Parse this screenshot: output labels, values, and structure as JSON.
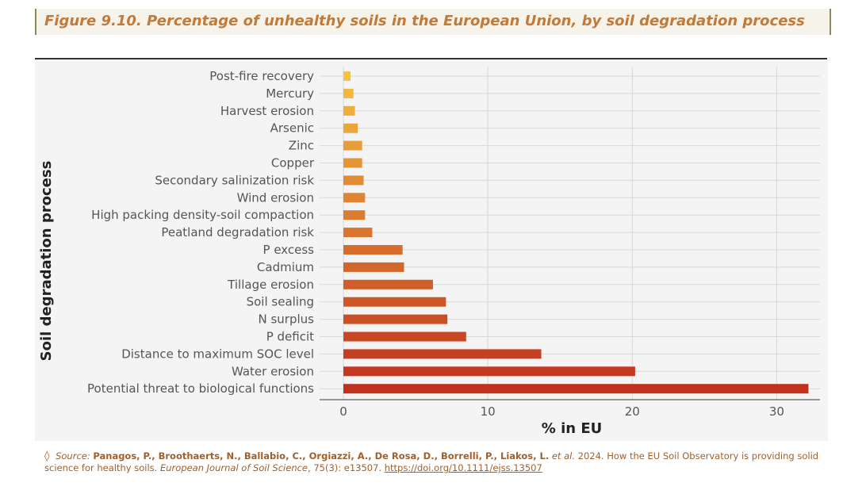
{
  "figure": {
    "title": "Figure 9.10. Percentage of unhealthy soils in the European Union, by soil degradation process"
  },
  "chart_data": {
    "type": "bar",
    "orientation": "horizontal",
    "categories": [
      "Post-fire recovery",
      "Mercury",
      "Harvest erosion",
      "Arsenic",
      "Zinc",
      "Copper",
      "Secondary salinization risk",
      "Wind erosion",
      "High packing density-soil compaction",
      "Peatland degradation risk",
      "P excess",
      "Cadmium",
      "Tillage erosion",
      "Soil sealing",
      "N surplus",
      "P deficit",
      "Distance to maximum SOC level",
      "Water erosion",
      "Potential threat to biological functions"
    ],
    "values": [
      0.5,
      0.7,
      0.8,
      1.0,
      1.3,
      1.3,
      1.4,
      1.5,
      1.5,
      2.0,
      4.1,
      4.2,
      6.2,
      7.1,
      7.2,
      8.5,
      13.7,
      20.2,
      32.2
    ],
    "xlabel": "% in EU",
    "ylabel": "Soil degradation process",
    "xlim": [
      0,
      33
    ],
    "xticks": [
      0,
      10,
      20,
      30
    ],
    "grid": true,
    "colors": {
      "low": "#f5c242",
      "high": "#c0321e"
    }
  },
  "source": {
    "label": "Source:",
    "authors": "Panagos, P., Broothaerts, N., Ballabio, C., Orgiazzi, A., De Rosa, D., Borrelli, P., Liakos, L.",
    "etal": "et al.",
    "text": "2024. How the EU Soil Observatory is providing solid science for healthy soils.",
    "journal": "European Journal of Soil Science",
    "volume": ", 75(3): e13507.",
    "link": "https://doi.org/10.1111/ejss.13507"
  }
}
